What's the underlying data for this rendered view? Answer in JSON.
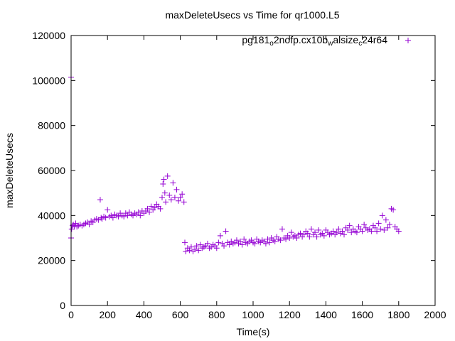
{
  "chart_data": {
    "type": "scatter",
    "title": "maxDeleteUsecs vs Time for qr1000.L5",
    "xlabel": "Time(s)",
    "ylabel": "maxDeleteUsecs",
    "xlim": [
      0,
      2000
    ],
    "ylim": [
      0,
      120000
    ],
    "xticks": [
      0,
      200,
      400,
      600,
      800,
      1000,
      1200,
      1400,
      1600,
      1800,
      2000
    ],
    "yticks": [
      0,
      20000,
      40000,
      60000,
      80000,
      100000,
      120000
    ],
    "grid": false,
    "legend_position": "top-right",
    "legend": {
      "segments": [
        {
          "text": "pg181",
          "sub": false
        },
        {
          "text": "o",
          "sub": true
        },
        {
          "text": "2nofp.cx10b",
          "sub": false
        },
        {
          "text": "w",
          "sub": true
        },
        {
          "text": "alsize",
          "sub": false
        },
        {
          "text": "c",
          "sub": true
        },
        {
          "text": "24r64",
          "sub": false
        }
      ]
    },
    "series": [
      {
        "color": "#9400D3",
        "marker": "plus",
        "x": [
          0,
          0,
          3,
          8,
          12,
          18,
          25,
          32,
          40,
          50,
          60,
          70,
          80,
          90,
          100,
          110,
          120,
          130,
          140,
          150,
          160,
          165,
          170,
          180,
          190,
          200,
          210,
          220,
          230,
          240,
          250,
          260,
          270,
          280,
          290,
          300,
          310,
          320,
          330,
          340,
          350,
          360,
          370,
          380,
          390,
          400,
          410,
          420,
          430,
          440,
          450,
          460,
          470,
          480,
          490,
          500,
          505,
          510,
          515,
          520,
          530,
          540,
          550,
          560,
          570,
          580,
          590,
          600,
          610,
          620,
          625,
          630,
          640,
          650,
          660,
          670,
          680,
          690,
          700,
          710,
          720,
          730,
          740,
          750,
          760,
          770,
          780,
          790,
          800,
          810,
          820,
          830,
          840,
          850,
          860,
          870,
          880,
          890,
          900,
          910,
          920,
          930,
          940,
          950,
          960,
          970,
          980,
          990,
          1000,
          1010,
          1020,
          1030,
          1040,
          1050,
          1060,
          1070,
          1080,
          1090,
          1100,
          1110,
          1120,
          1130,
          1140,
          1150,
          1160,
          1170,
          1180,
          1190,
          1200,
          1210,
          1220,
          1230,
          1240,
          1250,
          1260,
          1270,
          1280,
          1290,
          1300,
          1310,
          1320,
          1330,
          1340,
          1350,
          1360,
          1370,
          1380,
          1390,
          1400,
          1410,
          1420,
          1430,
          1440,
          1450,
          1460,
          1470,
          1480,
          1490,
          1500,
          1510,
          1520,
          1530,
          1540,
          1550,
          1560,
          1570,
          1580,
          1590,
          1600,
          1610,
          1620,
          1630,
          1640,
          1650,
          1660,
          1670,
          1680,
          1690,
          1700,
          1710,
          1720,
          1730,
          1740,
          1750,
          1760,
          1770,
          1780,
          1790,
          1800
        ],
        "y": [
          101500,
          30000,
          34000,
          35500,
          36000,
          35000,
          36500,
          35000,
          35500,
          36000,
          35500,
          36000,
          36500,
          37000,
          36000,
          37500,
          37000,
          38000,
          38500,
          38000,
          47000,
          39000,
          38500,
          39500,
          39000,
          42500,
          39500,
          40000,
          39000,
          40500,
          40000,
          39500,
          41000,
          40000,
          39500,
          41000,
          40000,
          41500,
          40500,
          40000,
          41000,
          40500,
          41500,
          40000,
          42000,
          41000,
          42000,
          43000,
          41500,
          44000,
          42500,
          43500,
          45000,
          44000,
          43000,
          48000,
          54000,
          56000,
          50000,
          46000,
          57500,
          49000,
          47000,
          54500,
          48000,
          51500,
          46500,
          48000,
          49500,
          46000,
          28000,
          24000,
          25500,
          24500,
          26000,
          24000,
          25000,
          26500,
          24500,
          27000,
          25500,
          26000,
          26500,
          27500,
          25500,
          26000,
          27000,
          26500,
          25500,
          28000,
          31000,
          27500,
          26500,
          33000,
          28000,
          27000,
          28500,
          27500,
          28000,
          29000,
          27500,
          28500,
          27000,
          29500,
          28000,
          27500,
          28500,
          29000,
          28000,
          27500,
          29500,
          28500,
          28000,
          29000,
          28500,
          27500,
          29500,
          28000,
          30000,
          29000,
          28500,
          30500,
          29500,
          29000,
          34000,
          30000,
          29500,
          31000,
          30000,
          32500,
          30500,
          31000,
          30000,
          31500,
          32000,
          30500,
          31500,
          33000,
          32000,
          30500,
          34000,
          31500,
          32500,
          30500,
          33500,
          31500,
          32000,
          31000,
          33500,
          32500,
          31500,
          32000,
          33000,
          31500,
          32500,
          34000,
          32000,
          33000,
          31500,
          34500,
          33500,
          35500,
          32500,
          34000,
          33000,
          32500,
          35000,
          34000,
          33000,
          36000,
          34500,
          33500,
          34000,
          33000,
          35500,
          34500,
          33000,
          36500,
          34000,
          40000,
          33500,
          38000,
          34500,
          36000,
          43000,
          42500,
          35000,
          34000,
          33000
        ]
      }
    ]
  }
}
